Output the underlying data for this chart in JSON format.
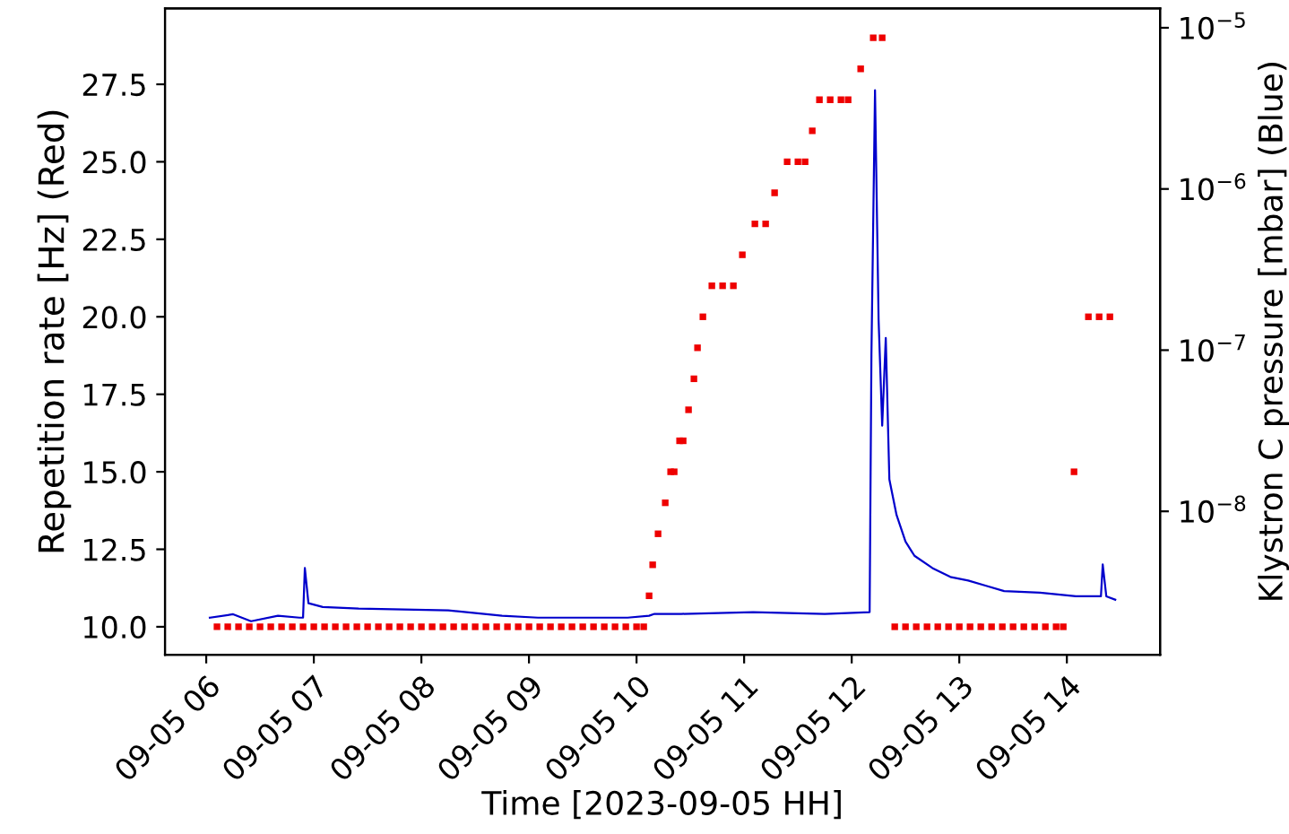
{
  "chart_data": {
    "type": "line",
    "xlabel": "Time [2023-09-05 HH]",
    "ylabel": "Repetition rate [Hz] (Red)",
    "y2label": "Klystron C pressure [mbar] (Blue)",
    "log": "y2",
    "grid": false,
    "xlim": [
      "2023-09-05T05:37",
      "2023-09-05T14:52"
    ],
    "xticks": [
      {
        "value": "2023-09-05T06:00",
        "label": "09-05 06"
      },
      {
        "value": "2023-09-05T07:00",
        "label": "09-05 07"
      },
      {
        "value": "2023-09-05T08:00",
        "label": "09-05 08"
      },
      {
        "value": "2023-09-05T09:00",
        "label": "09-05 09"
      },
      {
        "value": "2023-09-05T10:00",
        "label": "09-05 10"
      },
      {
        "value": "2023-09-05T11:00",
        "label": "09-05 11"
      },
      {
        "value": "2023-09-05T12:00",
        "label": "09-05 12"
      },
      {
        "value": "2023-09-05T13:00",
        "label": "09-05 13"
      },
      {
        "value": "2023-09-05T14:00",
        "label": "09-05 14"
      }
    ],
    "ylim": [
      9.1,
      29.95
    ],
    "yticks": [
      {
        "value": 10,
        "label": "10.0"
      },
      {
        "value": 12.5,
        "label": "12.5"
      },
      {
        "value": 15,
        "label": "15.0"
      },
      {
        "value": 17.5,
        "label": "17.5"
      },
      {
        "value": 20,
        "label": "20.0"
      },
      {
        "value": 22.5,
        "label": "22.5"
      },
      {
        "value": 25,
        "label": "25.0"
      },
      {
        "value": 27.5,
        "label": "27.5"
      }
    ],
    "y2lim": [
      1.29e-09,
      1.32e-05
    ],
    "y2ticks": [
      {
        "value": 1e-08,
        "label": "10$^{−8}$"
      },
      {
        "value": 1e-07,
        "label": "10$^{−7}$"
      },
      {
        "value": 1e-06,
        "label": "10$^{−6}$"
      },
      {
        "value": 1e-05,
        "label": "10$^{−5}$"
      }
    ],
    "series": [
      {
        "color": "#0000cc",
        "axis": "y2",
        "x": [
          "2023-09-05T06:02",
          "2023-09-05T06:15",
          "2023-09-05T06:25",
          "2023-09-05T06:40",
          "2023-09-05T06:52",
          "2023-09-05T06:54",
          "2023-09-05T06:55",
          "2023-09-05T06:57",
          "2023-09-05T07:05",
          "2023-09-05T07:25",
          "2023-09-05T08:15",
          "2023-09-05T08:45",
          "2023-09-05T09:05",
          "2023-09-05T09:55",
          "2023-09-05T10:07",
          "2023-09-05T10:10",
          "2023-09-05T10:25",
          "2023-09-05T11:05",
          "2023-09-05T11:45",
          "2023-09-05T12:10",
          "2023-09-05T12:11",
          "2023-09-05T12:13",
          "2023-09-05T12:15",
          "2023-09-05T12:17",
          "2023-09-05T12:19",
          "2023-09-05T12:21",
          "2023-09-05T12:22",
          "2023-09-05T12:25",
          "2023-09-05T12:30",
          "2023-09-05T12:35",
          "2023-09-05T12:45",
          "2023-09-05T12:55",
          "2023-09-05T13:05",
          "2023-09-05T13:15",
          "2023-09-05T13:25",
          "2023-09-05T13:45",
          "2023-09-05T13:55",
          "2023-09-05T14:05",
          "2023-09-05T14:19",
          "2023-09-05T14:20",
          "2023-09-05T14:22",
          "2023-09-05T14:27"
        ],
        "values": [
          2.19e-09,
          2.3e-09,
          2.08e-09,
          2.25e-09,
          2.19e-09,
          2.19e-09,
          4.45e-09,
          2.69e-09,
          2.55e-09,
          2.49e-09,
          2.43e-09,
          2.25e-09,
          2.19e-09,
          2.19e-09,
          2.25e-09,
          2.31e-09,
          2.31e-09,
          2.37e-09,
          2.31e-09,
          2.37e-09,
          9.3e-08,
          4.1e-06,
          1.54e-07,
          3.4e-08,
          1.19e-07,
          1.58e-08,
          1.39e-08,
          9.5e-09,
          6.5e-09,
          5.3e-09,
          4.45e-09,
          3.92e-09,
          3.72e-09,
          3.45e-09,
          3.2e-09,
          3.13e-09,
          3.05e-09,
          2.97e-09,
          2.97e-09,
          4.68e-09,
          2.97e-09,
          2.83e-09
        ]
      },
      {
        "type": "scatter",
        "marker": "square",
        "color": "#ee0000",
        "x": [
          "2023-09-05T06:06",
          "2023-09-05T06:12",
          "2023-09-05T06:18",
          "2023-09-05T06:24",
          "2023-09-05T06:30",
          "2023-09-05T06:36",
          "2023-09-05T06:42",
          "2023-09-05T06:48",
          "2023-09-05T06:54",
          "2023-09-05T07:00",
          "2023-09-05T07:06",
          "2023-09-05T07:12",
          "2023-09-05T07:18",
          "2023-09-05T07:24",
          "2023-09-05T07:30",
          "2023-09-05T07:36",
          "2023-09-05T07:42",
          "2023-09-05T07:48",
          "2023-09-05T07:54",
          "2023-09-05T08:00",
          "2023-09-05T08:06",
          "2023-09-05T08:12",
          "2023-09-05T08:18",
          "2023-09-05T08:24",
          "2023-09-05T08:30",
          "2023-09-05T08:36",
          "2023-09-05T08:42",
          "2023-09-05T08:48",
          "2023-09-05T08:54",
          "2023-09-05T09:00",
          "2023-09-05T09:06",
          "2023-09-05T09:12",
          "2023-09-05T09:18",
          "2023-09-05T09:24",
          "2023-09-05T09:30",
          "2023-09-05T09:36",
          "2023-09-05T09:42",
          "2023-09-05T09:48",
          "2023-09-05T09:54",
          "2023-09-05T10:00",
          "2023-09-05T10:04",
          "2023-09-05T10:07",
          "2023-09-05T10:09",
          "2023-09-05T10:12",
          "2023-09-05T10:16",
          "2023-09-05T10:19",
          "2023-09-05T10:21",
          "2023-09-05T10:24",
          "2023-09-05T10:26",
          "2023-09-05T10:29",
          "2023-09-05T10:32",
          "2023-09-05T10:34",
          "2023-09-05T10:37",
          "2023-09-05T10:42",
          "2023-09-05T10:48",
          "2023-09-05T10:54",
          "2023-09-05T10:59",
          "2023-09-05T11:06",
          "2023-09-05T11:12",
          "2023-09-05T11:17",
          "2023-09-05T11:24",
          "2023-09-05T11:30",
          "2023-09-05T11:34",
          "2023-09-05T11:38",
          "2023-09-05T11:42",
          "2023-09-05T11:48",
          "2023-09-05T11:54",
          "2023-09-05T11:58",
          "2023-09-05T12:05",
          "2023-09-05T12:12",
          "2023-09-05T12:17",
          "2023-09-05T12:24",
          "2023-09-05T12:30",
          "2023-09-05T12:36",
          "2023-09-05T12:42",
          "2023-09-05T12:48",
          "2023-09-05T12:54",
          "2023-09-05T13:00",
          "2023-09-05T13:06",
          "2023-09-05T13:12",
          "2023-09-05T13:18",
          "2023-09-05T13:24",
          "2023-09-05T13:30",
          "2023-09-05T13:36",
          "2023-09-05T13:42",
          "2023-09-05T13:48",
          "2023-09-05T13:54",
          "2023-09-05T13:58",
          "2023-09-05T14:04",
          "2023-09-05T14:12",
          "2023-09-05T14:18",
          "2023-09-05T14:24"
        ],
        "values": [
          10,
          10,
          10,
          10,
          10,
          10,
          10,
          10,
          10,
          10,
          10,
          10,
          10,
          10,
          10,
          10,
          10,
          10,
          10,
          10,
          10,
          10,
          10,
          10,
          10,
          10,
          10,
          10,
          10,
          10,
          10,
          10,
          10,
          10,
          10,
          10,
          10,
          10,
          10,
          10,
          10,
          11,
          12,
          13,
          14,
          15,
          15,
          16,
          16,
          17,
          18,
          19,
          20,
          21,
          21,
          21,
          22,
          23,
          23,
          24,
          25,
          25,
          25,
          26,
          27,
          27,
          27,
          27,
          28,
          29,
          29,
          10,
          10,
          10,
          10,
          10,
          10,
          10,
          10,
          10,
          10,
          10,
          10,
          10,
          10,
          10,
          10,
          10,
          15,
          20,
          20,
          20
        ]
      }
    ]
  }
}
